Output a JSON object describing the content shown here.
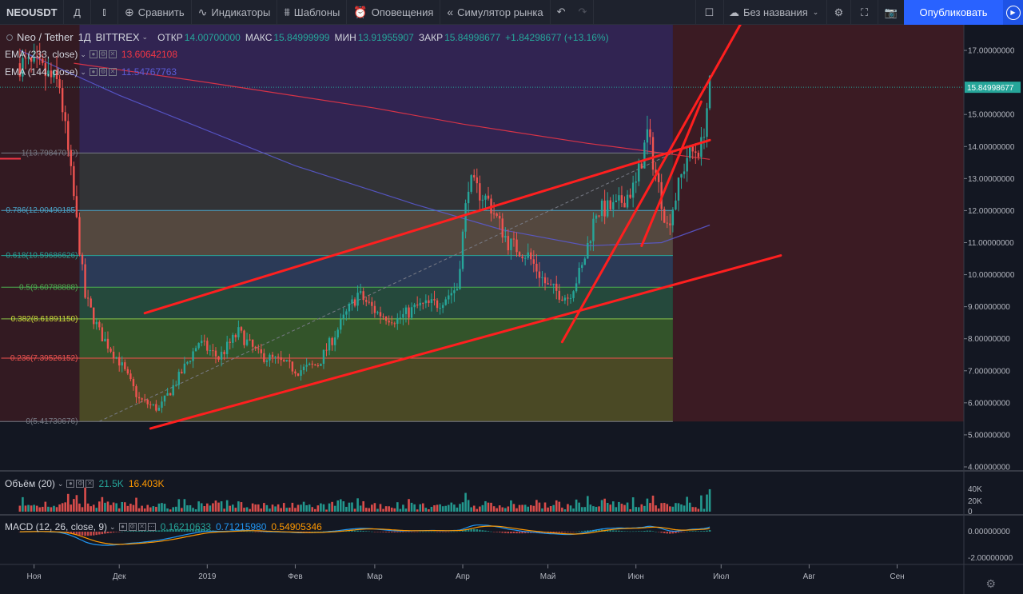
{
  "toolbar": {
    "symbol": "NEOUSDT",
    "interval": "Д",
    "compare": "Сравнить",
    "indicators": "Индикаторы",
    "templates": "Шаблоны",
    "alerts": "Оповещения",
    "replay": "Симулятор рынка",
    "layout_name": "Без названия",
    "publish": "Опубликовать"
  },
  "header": {
    "pair": "Neo / Tether",
    "interval": "1Д",
    "exchange": "BITTREX",
    "open_label": "ОТКР",
    "open": "14.00700000",
    "high_label": "МАКС",
    "high": "15.84999999",
    "low_label": "МИН",
    "low": "13.91955907",
    "close_label": "ЗАКР",
    "close": "15.84998677",
    "change": "+1.84298677 (+13.16%)"
  },
  "indicators": {
    "ema233_label": "EMA (233, close)",
    "ema233_value": "13.60642108",
    "ema144_label": "EMA (144, close)",
    "ema144_value": "11.54767763",
    "volume_label": "Объём (20)",
    "volume_value": "21.5K",
    "volume_ma": "16.403K",
    "macd_label": "MACD (12, 26, close, 9)",
    "macd_hist": "0.16210633",
    "macd_line": "0.71215980",
    "macd_signal": "0.54905346"
  },
  "colors": {
    "up": "#26a69a",
    "down": "#ef5350",
    "ema233": "#f23645",
    "ema144": "#5b5bd6",
    "trend": "#ff1f1f",
    "accent": "#2962ff"
  },
  "price_axis": {
    "labels": [
      "17.00000000",
      "15.00000000",
      "14.00000000",
      "13.00000000",
      "12.00000000",
      "11.00000000",
      "10.00000000",
      "9.00000000",
      "8.00000000",
      "7.00000000",
      "6.00000000",
      "5.00000000",
      "4.00000000"
    ],
    "last_price": "15.84998677"
  },
  "volume_axis": [
    "40K",
    "20K",
    "0"
  ],
  "macd_axis": [
    "0.00000000",
    "-2.00000000"
  ],
  "time_axis": [
    "Ноя",
    "Дек",
    "2019",
    "Фев",
    "Мар",
    "Апр",
    "Май",
    "Июн",
    "Июл",
    "Авг",
    "Сен"
  ],
  "fib_levels": [
    {
      "label": "1(13.79847019)",
      "price": 13.79847019,
      "fill": "#3d3d3d",
      "line": "#787b86",
      "text": "#787b86"
    },
    {
      "label": "0.786(12.00490185)",
      "price": 12.00490185,
      "fill": "#6b5a4a",
      "line": "#4aa3c7",
      "text": "#4aa3c7"
    },
    {
      "label": "0.618(10.59686626)",
      "price": 10.59686626,
      "fill": "#34476a",
      "line": "#26a69a",
      "text": "#26a69a"
    },
    {
      "label": "0.5(9.60788888)",
      "price": 9.60788888,
      "fill": "#2c5b46",
      "line": "#4caf50",
      "text": "#4caf50"
    },
    {
      "label": "0.382(8.61891150)",
      "price": 8.6189115,
      "fill": "#3f6a2e",
      "line": "#8bc34a",
      "text": "#cddc39"
    },
    {
      "label": "0.236(7.39526152)",
      "price": 7.39526152,
      "fill": "#5e5b27",
      "line": "#ef5350",
      "text": "#ef5350"
    },
    {
      "label": "0(5.41730676)",
      "price": 5.41730676,
      "fill": "#5e2729",
      "line": "#787b86",
      "text": "#787b86"
    }
  ],
  "chart_data": {
    "type": "candlestick",
    "symbol": "NEOUSDT",
    "interval": "1D",
    "ohlc_last": {
      "open": 14.007,
      "high": 15.84999999,
      "low": 13.91955907,
      "close": 15.84998677
    },
    "y_range": [
      4.0,
      17.8
    ],
    "close_path": [
      [
        "2018-10-27",
        16.6
      ],
      [
        "2018-11-03",
        16.4
      ],
      [
        "2018-11-10",
        15.9
      ],
      [
        "2018-11-15",
        12.4
      ],
      [
        "2018-11-19",
        9.3
      ],
      [
        "2018-11-24",
        8.2
      ],
      [
        "2018-12-01",
        7.3
      ],
      [
        "2018-12-08",
        6.1
      ],
      [
        "2018-12-15",
        5.8
      ],
      [
        "2018-12-22",
        6.8
      ],
      [
        "2018-12-29",
        7.9
      ],
      [
        "2019-01-05",
        7.4
      ],
      [
        "2019-01-12",
        8.2
      ],
      [
        "2019-01-19",
        7.5
      ],
      [
        "2019-01-26",
        7.3
      ],
      [
        "2019-02-02",
        7.0
      ],
      [
        "2019-02-09",
        7.2
      ],
      [
        "2019-02-16",
        8.3
      ],
      [
        "2019-02-23",
        9.4
      ],
      [
        "2019-03-02",
        8.8
      ],
      [
        "2019-03-09",
        8.6
      ],
      [
        "2019-03-16",
        9.0
      ],
      [
        "2019-03-23",
        9.1
      ],
      [
        "2019-03-30",
        9.6
      ],
      [
        "2019-04-03",
        12.9
      ],
      [
        "2019-04-10",
        12.3
      ],
      [
        "2019-04-17",
        11.0
      ],
      [
        "2019-04-24",
        10.6
      ],
      [
        "2019-05-01",
        9.6
      ],
      [
        "2019-05-08",
        9.3
      ],
      [
        "2019-05-13",
        10.2
      ],
      [
        "2019-05-18",
        12.0
      ],
      [
        "2019-05-25",
        12.1
      ],
      [
        "2019-06-01",
        12.8
      ],
      [
        "2019-06-05",
        14.4
      ],
      [
        "2019-06-12",
        11.5
      ],
      [
        "2019-06-19",
        13.7
      ],
      [
        "2019-06-24",
        14.0
      ],
      [
        "2019-06-27",
        15.85
      ]
    ],
    "ema144_path": [
      [
        "2018-10-27",
        17.0
      ],
      [
        "2018-12-01",
        15.6
      ],
      [
        "2019-02-01",
        13.4
      ],
      [
        "2019-03-15",
        12.2
      ],
      [
        "2019-04-15",
        11.4
      ],
      [
        "2019-05-15",
        10.9
      ],
      [
        "2019-06-10",
        11.0
      ],
      [
        "2019-06-27",
        11.55
      ]
    ],
    "ema233_path": [
      [
        "2018-11-15",
        16.6
      ],
      [
        "2019-01-01",
        16.0
      ],
      [
        "2019-03-01",
        15.2
      ],
      [
        "2019-04-01",
        14.7
      ],
      [
        "2019-05-15",
        14.1
      ],
      [
        "2019-06-10",
        13.8
      ],
      [
        "2019-06-27",
        13.6
      ]
    ],
    "trendlines": [
      {
        "from": [
          "2018-12-10",
          8.8
        ],
        "to": [
          "2019-06-27",
          14.2
        ]
      },
      {
        "from": [
          "2018-12-12",
          5.2
        ],
        "to": [
          "2019-07-22",
          10.6
        ]
      },
      {
        "from": [
          "2019-05-06",
          7.9
        ],
        "to": [
          "2019-07-09",
          18.0
        ]
      },
      {
        "from": [
          "2019-06-03",
          10.9
        ],
        "to": [
          "2019-06-24",
          15.4
        ]
      }
    ],
    "time_labels": [
      "Ноя",
      "Дек",
      "2019",
      "Фев",
      "Мар",
      "Апр",
      "Май",
      "Июн",
      "Июл",
      "Авг",
      "Сен"
    ]
  }
}
